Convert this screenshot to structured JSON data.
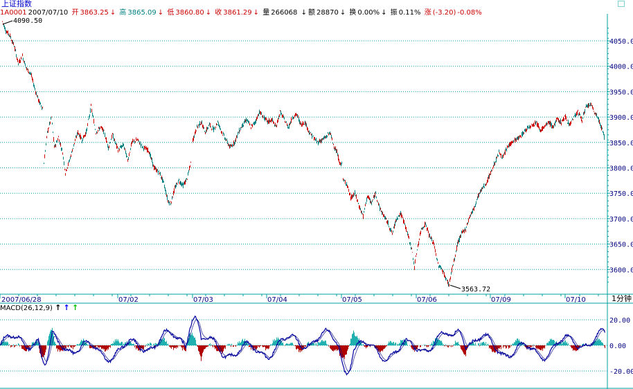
{
  "header": {
    "title": "上证指数",
    "code": "1A0001",
    "date": "2007/07/10",
    "open_label": "开",
    "open_value": "3863.25",
    "open_arrow": "↓",
    "high_label": "高",
    "high_value": "3865.09",
    "high_arrow": "↓",
    "low_label": "低",
    "low_value": "3860.80",
    "low_arrow": "↓",
    "close_label": "收",
    "close_value": "3861.29",
    "close_arrow": "↓",
    "volume_label": "量",
    "volume_value": "266068",
    "volume_arrow": "",
    "amount_label": "额",
    "amount_value": "28870",
    "amount_arrow": "↓",
    "turnover_label": "换",
    "turnover_value": "0.00%",
    "turnover_arrow": "↓",
    "amplitude_label": "振",
    "amplitude_value": "0.11%",
    "change_label": "涨",
    "change_value": "(-3.20)",
    "change_pct": "-0.08%"
  },
  "colors": {
    "up": "#cc0000",
    "down": "#008080",
    "grid": "#00a0a0",
    "date_text": "#000080",
    "macd_pos": "#20b0b0",
    "macd_neg": "#b00000",
    "macd_dif": "#0000a0",
    "macd_dea": "#ffffff"
  },
  "time_axis": {
    "labels": [
      "2007/06/28",
      "07/02",
      "07/03",
      "07/04",
      "07/05",
      "07/06",
      "07/09",
      "07/10"
    ],
    "timeframe": "1分钟"
  },
  "price_axis": {
    "ticks": [
      "4050.00",
      "4000.00",
      "3950.00",
      "3900.00",
      "3850.00",
      "3800.00",
      "3750.00",
      "3700.00",
      "3650.00",
      "3600.00"
    ]
  },
  "annotations": {
    "high_marker": "4090.50",
    "low_marker": "3563.72"
  },
  "macd": {
    "label": "MACD(26,12,9)",
    "ticks": [
      "20.00",
      "0.00",
      "-20.00"
    ],
    "arrows": [
      "↑",
      "↑",
      "↑"
    ]
  },
  "chart_data": {
    "type": "line",
    "title": "上证指数",
    "x": [
      "2007/06/28",
      "07/02",
      "07/03",
      "07/04",
      "07/05",
      "07/06",
      "07/09",
      "07/10"
    ],
    "series": [
      {
        "name": "上证指数",
        "values": [
          4090.5,
          3800,
          3770,
          3900,
          3800,
          3570,
          3820,
          3861.29
        ]
      }
    ],
    "ylim": [
      3560,
      4100
    ],
    "grid": true
  }
}
